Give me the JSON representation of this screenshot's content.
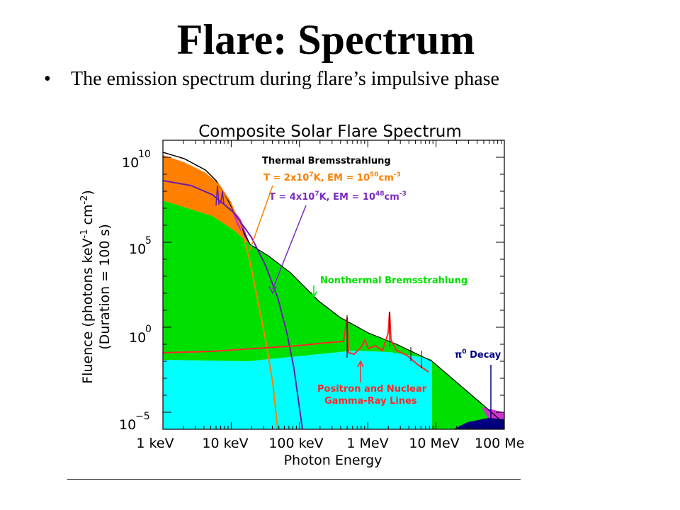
{
  "slide": {
    "title": "Flare: Spectrum",
    "bullet": "The emission spectrum during flare’s impulsive phase"
  },
  "chart_data": {
    "type": "area",
    "title": "Composite Solar Flare Spectrum",
    "xlabel": "Photon Energy",
    "ylabel_line1": "Fluence (photons keV",
    "ylabel_line2": "(Duration = 100 s)",
    "x_scale": "log",
    "y_scale": "log",
    "xlim_keV": [
      1,
      100000
    ],
    "ylim": [
      1e-06,
      100000000000.0
    ],
    "x_ticks": [
      {
        "label": "1 keV",
        "value": 1
      },
      {
        "label": "10 keV",
        "value": 10
      },
      {
        "label": "100 keV",
        "value": 100
      },
      {
        "label": "1 MeV",
        "value": 1000
      },
      {
        "label": "10 MeV",
        "value": 10000
      },
      {
        "label": "100 Me",
        "value": 100000
      }
    ],
    "y_ticks": [
      {
        "base": "10",
        "exp": "10",
        "value": 10000000000.0
      },
      {
        "base": "10",
        "exp": "5",
        "value": 100000.0
      },
      {
        "base": "10",
        "exp": "0",
        "value": 1
      },
      {
        "base": "10",
        "exp": "−5",
        "value": 1e-05
      }
    ],
    "series": [
      {
        "name": "Thermal Bremsstrahlung, T = 2x10^7 K",
        "color": "#ff7f00",
        "x": [
          1,
          3,
          7,
          10,
          20,
          40,
          60,
          80,
          100,
          150
        ],
        "y": [
          10000000000.0,
          5000000000.0,
          1200000000.0,
          400000000.0,
          20000000.0,
          100000.0,
          2000.0,
          40,
          1,
          1e-05
        ]
      },
      {
        "name": "Thermal Bremsstrahlung, T = 4x10^7 K",
        "color": "#7b2bbf",
        "x": [
          1,
          3,
          7,
          10,
          20,
          40,
          60,
          100,
          150,
          300
        ],
        "y": [
          300000000.0,
          200000000.0,
          120000000.0,
          80000000.0,
          20000000.0,
          1000000.0,
          100000.0,
          3000.0,
          10,
          1e-06
        ]
      },
      {
        "name": "Nonthermal Bremsstrahlung",
        "color": "#00e000",
        "x": [
          1,
          10,
          20,
          50,
          100,
          300,
          1000,
          3000,
          10000,
          30000,
          100000
        ],
        "y": [
          10000000.0,
          1000000.0,
          400000.0,
          30000.0,
          5000.0,
          150,
          5,
          0.3,
          0.03,
          0.0005,
          1e-05
        ]
      },
      {
        "name": "Positron and Nuclear Gamma-Ray Lines",
        "color": "#ff2a2a",
        "x": [
          1,
          100,
          500,
          511,
          520,
          1000,
          2223,
          5000,
          10000
        ],
        "y": [
          0.0003,
          0.02,
          0.2,
          30,
          0.03,
          0.05,
          20,
          0.005,
          0.0003
        ]
      },
      {
        "name": "π0 Decay",
        "color": "#000080",
        "x": [
          20000,
          50000,
          70000,
          100000
        ],
        "y": [
          1e-06,
          1e-05,
          0.01,
          1e-05
        ]
      }
    ],
    "annotations": {
      "thermal": "Thermal Bremsstrahlung",
      "t1_pre": "T = 2x10",
      "t1_exp": "7",
      "t1_mid": "K, EM = 10",
      "t1_exp2": "50",
      "t1_post": "cm",
      "t2_pre": "T = 4x10",
      "t2_exp": "7",
      "t2_mid": "K, EM = 10",
      "t2_exp2": "48",
      "t2_post": "cm",
      "cm_exp": "-3",
      "nonthermal": "Nonthermal Bremsstrahlung",
      "positron1": "Positron and Nuclear",
      "positron2": "Gamma-Ray Lines",
      "pi": "π",
      "pi_exp": "0",
      "decay": " Decay",
      "ylabel_exp1": "-1",
      "ylabel_mid": " cm",
      "ylabel_exp2": "-2",
      "ylabel_end": ")"
    },
    "colors": {
      "orange_region": "#ff7f00",
      "green_region": "#00e000",
      "cyan_region": "#00ffff",
      "magenta_region": "#cc33cc",
      "navy_region": "#000080"
    }
  }
}
